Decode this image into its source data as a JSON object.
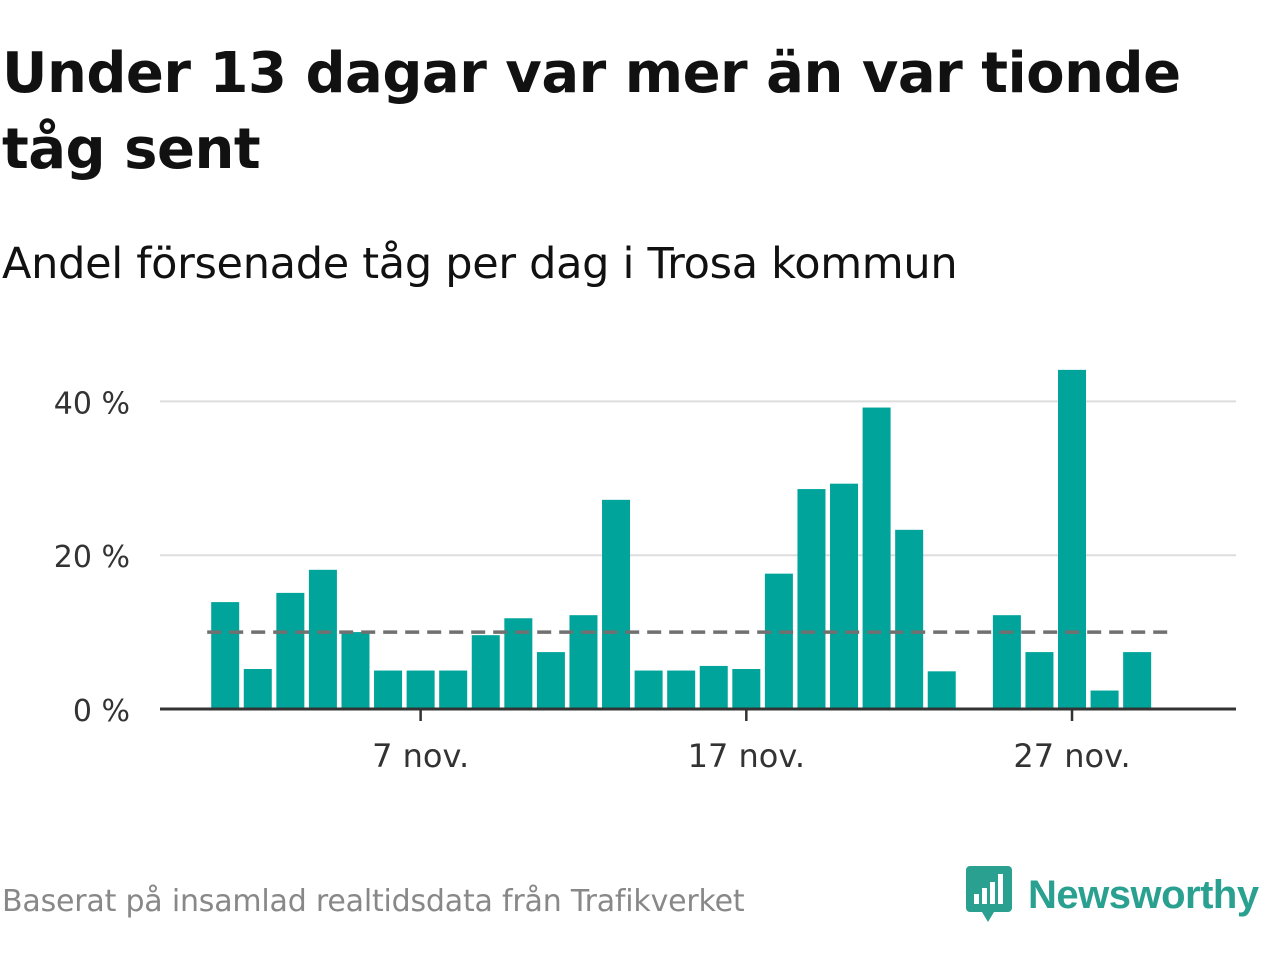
{
  "title": "Under 13 dagar var mer än var tionde tåg sent",
  "subtitle": "Andel försenade tåg per dag i Trosa kommun",
  "source": "Baserat på insamlad realtidsdata från Trafikverket",
  "brand": {
    "name": "Newsworthy",
    "icon": "newsworthy-logo-icon",
    "color": "#2aa090"
  },
  "chart_data": {
    "type": "bar",
    "x_start_day": 1,
    "month_label": "nov.",
    "values": [
      13.9,
      5.2,
      15.1,
      18.1,
      10.0,
      5.0,
      5.0,
      5.0,
      9.6,
      11.8,
      7.4,
      12.2,
      27.2,
      5.0,
      5.0,
      5.6,
      5.2,
      17.6,
      28.6,
      29.3,
      39.2,
      23.3,
      4.9,
      null,
      12.2,
      7.4,
      44.1,
      2.4,
      7.4
    ],
    "reference_line": {
      "value": 10,
      "style": "dashed"
    },
    "y_ticks": [
      0,
      20,
      40
    ],
    "y_tick_labels": [
      "0 %",
      "20 %",
      "40 %"
    ],
    "ylim": [
      0,
      45
    ],
    "x_ticks": [
      7,
      17,
      27
    ],
    "x_tick_labels": [
      "7 nov.",
      "17 nov.",
      "27 nov."
    ],
    "grid": true,
    "colors": {
      "bar": "#00a49a",
      "reference_line": "#707070",
      "grid": "#dddddd",
      "axis": "#333333"
    }
  }
}
